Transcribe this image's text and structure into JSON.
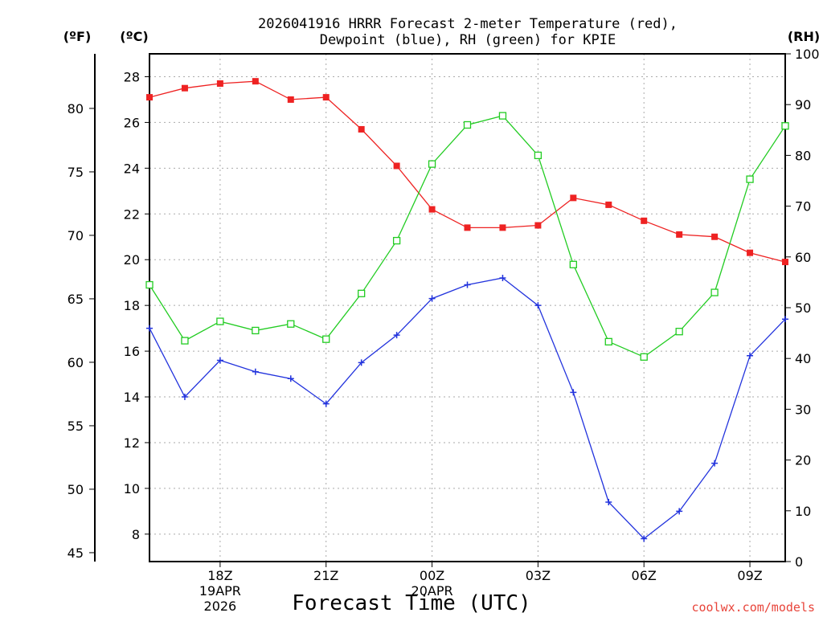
{
  "chart_data": {
    "type": "line",
    "title_line1": "2026041916 HRRR Forecast 2-meter Temperature (red),",
    "title_line2": "Dewpoint (blue), RH (green) for KPIE",
    "xlabel": "Forecast Time (UTC)",
    "credit": "coolwx.com/models",
    "credit_color": "#e8443a",
    "x_hours": [
      0,
      1,
      2,
      3,
      4,
      5,
      6,
      7,
      8,
      9,
      10,
      11,
      12,
      13,
      14,
      15,
      16,
      17,
      18
    ],
    "xlim": [
      0,
      18
    ],
    "x_ticks": [
      {
        "hour": 2,
        "label": "18Z",
        "sub1": "19APR",
        "sub2": "2026"
      },
      {
        "hour": 5,
        "label": "21Z"
      },
      {
        "hour": 8,
        "label": "00Z",
        "sub1": "20APR"
      },
      {
        "hour": 11,
        "label": "03Z"
      },
      {
        "hour": 14,
        "label": "06Z"
      },
      {
        "hour": 17,
        "label": "09Z"
      }
    ],
    "axes": {
      "fahrenheit": {
        "unit_label": "(ºF)",
        "lim": [
          44.3,
          84.3
        ],
        "ticks": [
          "45",
          "50",
          "55",
          "60",
          "65",
          "70",
          "75",
          "80"
        ]
      },
      "celsius": {
        "unit_label": "(ºC)",
        "lim": [
          6.8,
          29
        ],
        "ticks": [
          "8",
          "10",
          "12",
          "14",
          "16",
          "18",
          "20",
          "22",
          "24",
          "26",
          "28"
        ]
      },
      "rh": {
        "unit_label": "(RH)",
        "lim": [
          0,
          100
        ],
        "ticks": [
          "0",
          "10",
          "20",
          "30",
          "40",
          "50",
          "60",
          "70",
          "80",
          "90",
          "100"
        ]
      }
    },
    "series": [
      {
        "name": "Temperature",
        "axis": "celsius",
        "color": "#ee2222",
        "marker": "filled-square",
        "values": [
          27.1,
          27.5,
          27.7,
          27.8,
          27.0,
          27.1,
          25.7,
          24.1,
          22.2,
          21.4,
          21.4,
          21.5,
          22.7,
          22.4,
          21.7,
          21.1,
          21.0,
          20.3,
          19.9
        ]
      },
      {
        "name": "Dewpoint",
        "axis": "celsius",
        "color": "#2233dd",
        "marker": "plus",
        "values": [
          17.0,
          14.0,
          15.6,
          15.1,
          14.8,
          13.7,
          15.5,
          16.7,
          18.3,
          18.9,
          19.2,
          18.0,
          14.2,
          9.4,
          7.8,
          9.0,
          11.1,
          15.8,
          17.4
        ]
      },
      {
        "name": "RH",
        "axis": "rh",
        "color": "#22cc22",
        "marker": "open-square",
        "values": [
          54.5,
          43.5,
          47.3,
          45.5,
          46.8,
          43.8,
          52.8,
          63.2,
          78.3,
          86.0,
          87.8,
          80.0,
          58.5,
          43.3,
          40.3,
          45.3,
          53.0,
          75.3,
          85.8
        ]
      }
    ]
  }
}
